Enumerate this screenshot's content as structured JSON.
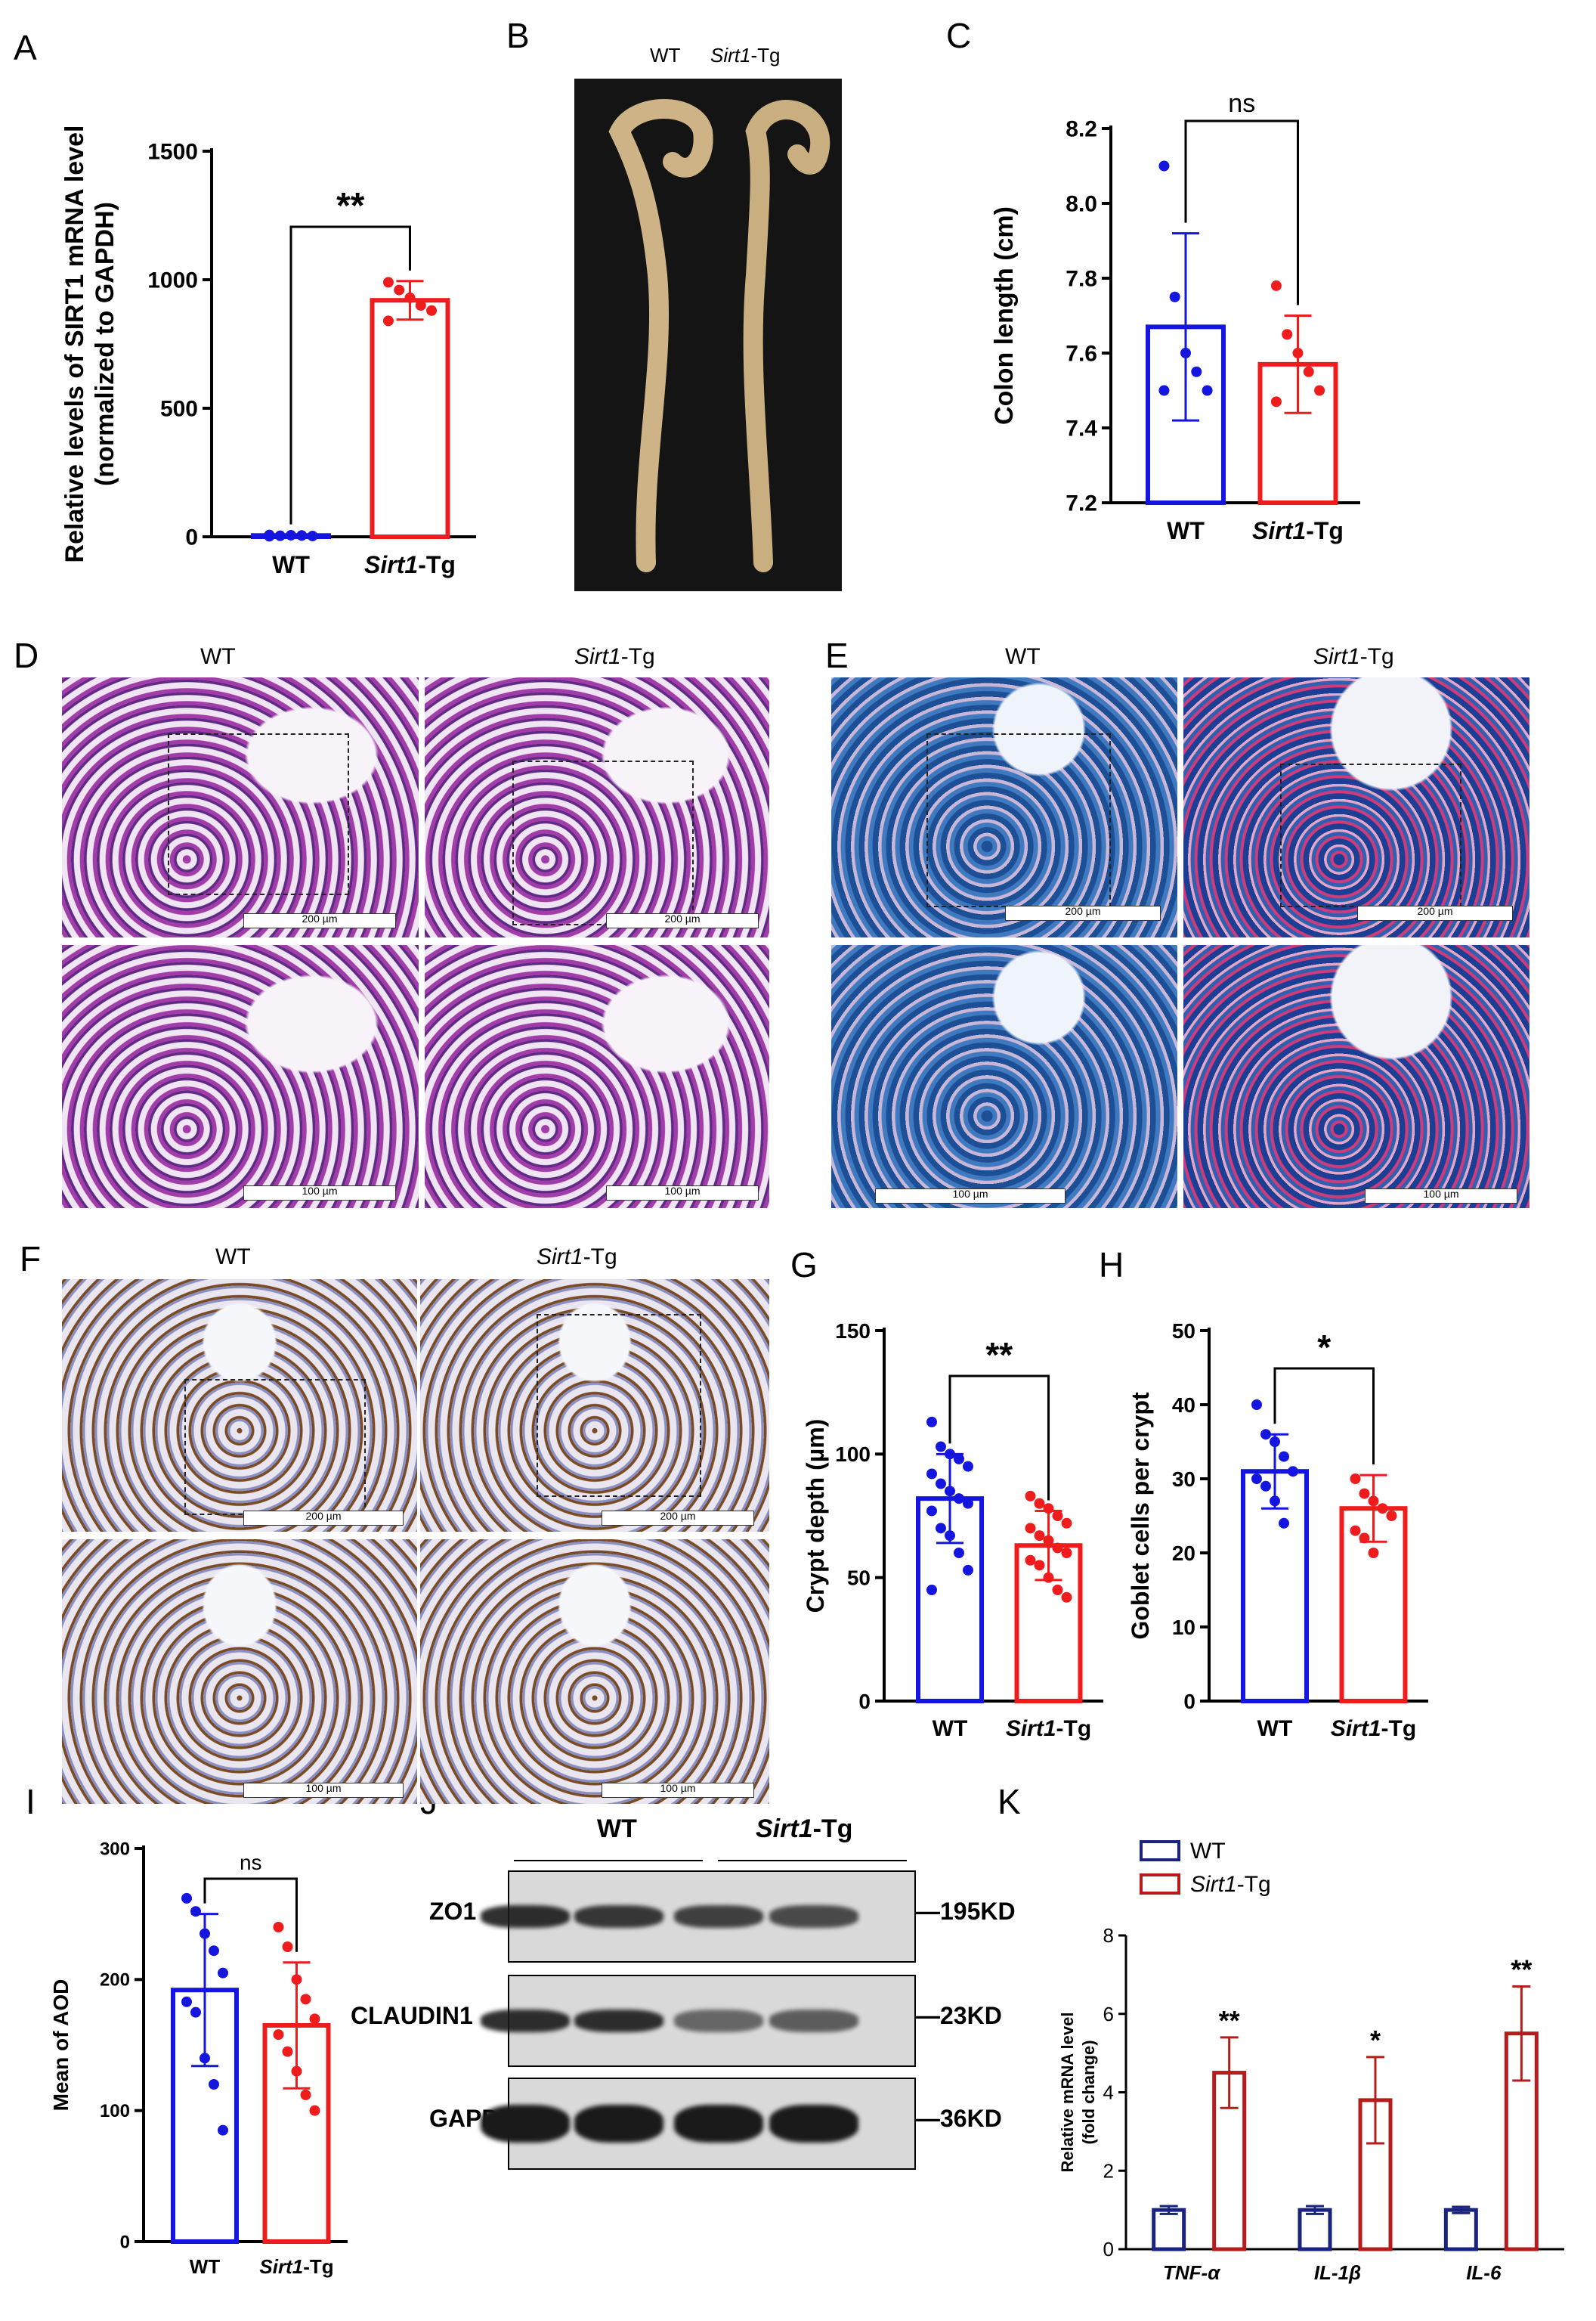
{
  "panels": {
    "A": "A",
    "B": "B",
    "C": "C",
    "D": "D",
    "E": "E",
    "F": "F",
    "G": "G",
    "H": "H",
    "I": "I",
    "J": "J",
    "K": "K"
  },
  "groups": {
    "wt": "WT",
    "tg": "Sirt1-Tg",
    "tg_italic": "Sirt1",
    "tg_suffix": "-Tg"
  },
  "scalebars": {
    "s200": "200 µm",
    "s100": "100 µm"
  },
  "blot": {
    "rows": [
      {
        "label": "ZO1",
        "size": "195KD"
      },
      {
        "label": "CLAUDIN1",
        "size": "23KD"
      },
      {
        "label": "GAPDH",
        "size": "36KD"
      }
    ],
    "intensity": {
      "ZO1": [
        0.9,
        0.85,
        0.8,
        0.75
      ],
      "CLAUDIN1": [
        0.9,
        0.9,
        0.6,
        0.65
      ],
      "GAPDH": [
        1,
        1,
        1,
        1
      ]
    }
  },
  "colors": {
    "wt": "#1515e0",
    "tg": "#ee1c1c",
    "k_wt": "#1a237e",
    "k_tg": "#b71c1c"
  },
  "chart_data": [
    {
      "id": "A",
      "type": "bar",
      "title": "",
      "ylabel": "Relative levels of SIRT1 mRNA  level (normalized to GAPDH)",
      "categories": [
        "WT",
        "Sirt1-Tg"
      ],
      "values": [
        5,
        920
      ],
      "sd": [
        2,
        75
      ],
      "ylim": [
        0,
        1500
      ],
      "yticks": [
        0,
        500,
        1000,
        1500
      ],
      "significance": "**",
      "points": [
        [
          0,
          2
        ],
        [
          0,
          4
        ],
        [
          0,
          6
        ],
        [
          0,
          5
        ],
        [
          0,
          3
        ],
        [
          0,
          7
        ],
        [
          1,
          990
        ],
        [
          1,
          960
        ],
        [
          1,
          930
        ],
        [
          1,
          900
        ],
        [
          1,
          880
        ],
        [
          1,
          840
        ]
      ]
    },
    {
      "id": "C",
      "type": "bar",
      "ylabel": "Colon length (cm)",
      "categories": [
        "WT",
        "Sirt1-Tg"
      ],
      "values": [
        7.67,
        7.57
      ],
      "sd": [
        0.25,
        0.13
      ],
      "ylim": [
        7.2,
        8.2
      ],
      "yticks": [
        7.2,
        7.4,
        7.6,
        7.8,
        8.0,
        8.2
      ],
      "significance": "ns",
      "points": [
        [
          0,
          8.1
        ],
        [
          0,
          7.75
        ],
        [
          0,
          7.6
        ],
        [
          0,
          7.55
        ],
        [
          0,
          7.5
        ],
        [
          0,
          7.5
        ],
        [
          1,
          7.78
        ],
        [
          1,
          7.65
        ],
        [
          1,
          7.6
        ],
        [
          1,
          7.55
        ],
        [
          1,
          7.5
        ],
        [
          1,
          7.47
        ]
      ]
    },
    {
      "id": "G",
      "type": "bar",
      "ylabel": "Crypt depth (µm)",
      "categories": [
        "WT",
        "Sirt1-Tg"
      ],
      "values": [
        82,
        63
      ],
      "sd": [
        18,
        14
      ],
      "ylim": [
        0,
        150
      ],
      "yticks": [
        0,
        50,
        100,
        150
      ],
      "significance": "**",
      "points": [
        [
          0,
          113
        ],
        [
          0,
          103
        ],
        [
          0,
          100
        ],
        [
          0,
          98
        ],
        [
          0,
          95
        ],
        [
          0,
          92
        ],
        [
          0,
          88
        ],
        [
          0,
          85
        ],
        [
          0,
          82
        ],
        [
          0,
          80
        ],
        [
          0,
          77
        ],
        [
          0,
          70
        ],
        [
          0,
          67
        ],
        [
          0,
          60
        ],
        [
          0,
          53
        ],
        [
          0,
          45
        ],
        [
          1,
          83
        ],
        [
          1,
          80
        ],
        [
          1,
          78
        ],
        [
          1,
          75
        ],
        [
          1,
          72
        ],
        [
          1,
          70
        ],
        [
          1,
          67
        ],
        [
          1,
          65
        ],
        [
          1,
          62
        ],
        [
          1,
          60
        ],
        [
          1,
          57
        ],
        [
          1,
          55
        ],
        [
          1,
          50
        ],
        [
          1,
          45
        ],
        [
          1,
          42
        ]
      ]
    },
    {
      "id": "H",
      "type": "bar",
      "ylabel": "Goblet cells per crypt",
      "categories": [
        "WT",
        "Sirt1-Tg"
      ],
      "values": [
        31,
        26
      ],
      "sd": [
        5,
        4.5
      ],
      "ylim": [
        0,
        50
      ],
      "yticks": [
        0,
        10,
        20,
        30,
        40,
        50
      ],
      "significance": "*",
      "points": [
        [
          0,
          40
        ],
        [
          0,
          36
        ],
        [
          0,
          35
        ],
        [
          0,
          33
        ],
        [
          0,
          31
        ],
        [
          0,
          30
        ],
        [
          0,
          29
        ],
        [
          0,
          27
        ],
        [
          0,
          24
        ],
        [
          1,
          30
        ],
        [
          1,
          28
        ],
        [
          1,
          27
        ],
        [
          1,
          26
        ],
        [
          1,
          25
        ],
        [
          1,
          23
        ],
        [
          1,
          22
        ],
        [
          1,
          20
        ]
      ]
    },
    {
      "id": "I",
      "type": "bar",
      "ylabel": "Mean of AOD",
      "categories": [
        "WT",
        "Sirt1-Tg"
      ],
      "values": [
        192,
        165
      ],
      "sd": [
        58,
        48
      ],
      "ylim": [
        0,
        300
      ],
      "yticks": [
        0,
        100,
        200,
        300
      ],
      "significance": "ns",
      "points": [
        [
          0,
          262
        ],
        [
          0,
          252
        ],
        [
          0,
          235
        ],
        [
          0,
          222
        ],
        [
          0,
          205
        ],
        [
          0,
          183
        ],
        [
          0,
          175
        ],
        [
          0,
          140
        ],
        [
          0,
          120
        ],
        [
          0,
          85
        ],
        [
          1,
          240
        ],
        [
          1,
          225
        ],
        [
          1,
          200
        ],
        [
          1,
          185
        ],
        [
          1,
          170
        ],
        [
          1,
          158
        ],
        [
          1,
          145
        ],
        [
          1,
          130
        ],
        [
          1,
          112
        ],
        [
          1,
          100
        ]
      ]
    },
    {
      "id": "K",
      "type": "grouped-bar",
      "ylabel": "Relative mRNA level (fold change)",
      "categories": [
        "TNF-α",
        "IL-1β",
        "IL-6"
      ],
      "series": [
        {
          "name": "WT",
          "values": [
            1,
            1,
            1
          ],
          "sd": [
            0.1,
            0.1,
            0.08
          ]
        },
        {
          "name": "Sirt1-Tg",
          "values": [
            4.5,
            3.8,
            5.5
          ],
          "sd": [
            0.9,
            1.1,
            1.2
          ]
        }
      ],
      "ylim": [
        0,
        8
      ],
      "yticks": [
        0,
        2,
        4,
        6,
        8
      ],
      "significance": [
        "**",
        "*",
        "**"
      ]
    }
  ]
}
